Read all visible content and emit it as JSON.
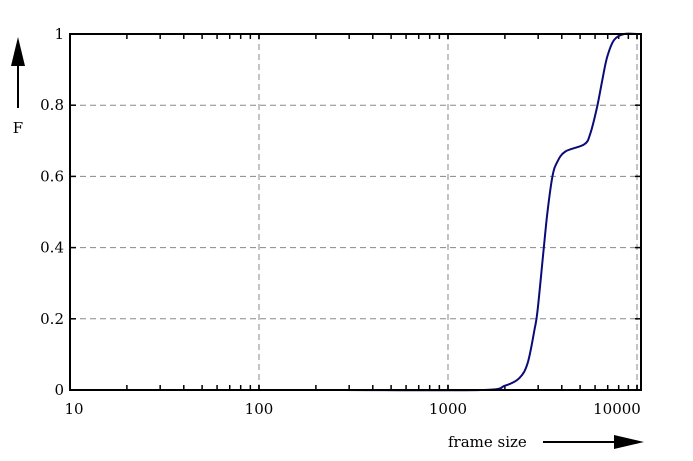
{
  "chart_data": {
    "type": "line",
    "title": "",
    "xlabel": "frame size",
    "ylabel": "F",
    "x_scale": "log",
    "xlim": [
      10,
      10500
    ],
    "ylim": [
      0,
      1
    ],
    "grid": true,
    "x_ticks": [
      10,
      100,
      1000,
      10000
    ],
    "x_tick_labels": [
      "10",
      "100",
      "1000",
      "10000"
    ],
    "y_ticks": [
      0,
      0.2,
      0.4,
      0.6,
      0.8,
      1
    ],
    "y_tick_labels": [
      "0",
      "0.2",
      "0.4",
      "0.6",
      "0.8",
      "1"
    ],
    "series": [
      {
        "color": "#0a0a78",
        "x": [
          280,
          1490,
          2000,
          2390,
          2640,
          2870,
          2980,
          3200,
          3360,
          3570,
          3780,
          4180,
          5260,
          5660,
          6150,
          6550,
          6950,
          7560,
          8550,
          10000
        ],
        "y": [
          0,
          0,
          0.012,
          0.034,
          0.076,
          0.17,
          0.225,
          0.39,
          0.5,
          0.6,
          0.64,
          0.67,
          0.69,
          0.72,
          0.795,
          0.87,
          0.935,
          0.983,
          1.0,
          1.0
        ]
      }
    ]
  }
}
